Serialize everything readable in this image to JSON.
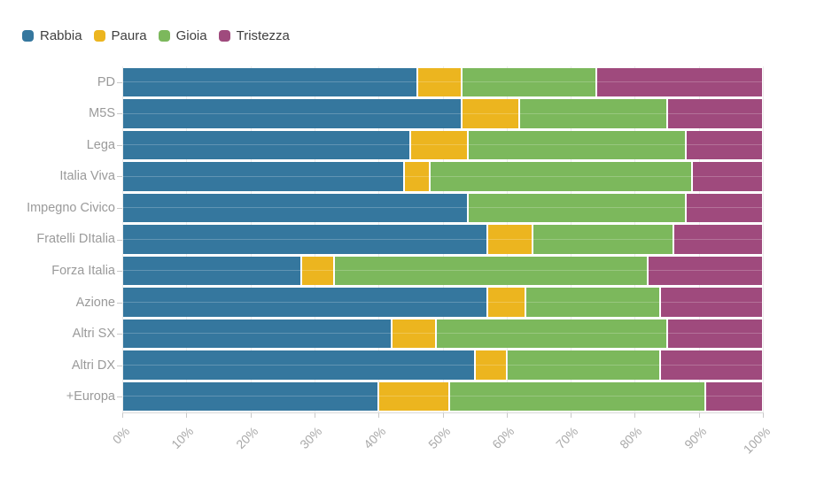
{
  "legend": {
    "items": [
      {
        "id": "rabbia",
        "label": "Rabbia",
        "color": "#35779E"
      },
      {
        "id": "paura",
        "label": "Paura",
        "color": "#ECB51F"
      },
      {
        "id": "gioia",
        "label": "Gioia",
        "color": "#7CB85C"
      },
      {
        "id": "tristezza",
        "label": "Tristezza",
        "color": "#9F4A7D"
      }
    ]
  },
  "chart_data": {
    "type": "bar",
    "orientation": "horizontal",
    "stacked": true,
    "stacked_total": 100,
    "title": "",
    "xlabel": "",
    "ylabel": "",
    "xlim": [
      0,
      100
    ],
    "grid": "vertical-light",
    "legend_position": "top-left",
    "categories": [
      "PD",
      "M5S",
      "Lega",
      "Italia Viva",
      "Impegno Civico",
      "Fratelli DItalia",
      "Forza Italia",
      "Azione",
      "Altri SX",
      "Altri DX",
      "+Europa"
    ],
    "series": [
      {
        "name": "Rabbia",
        "color": "#35779E",
        "values": [
          46,
          53,
          45,
          44,
          54,
          57,
          28,
          57,
          42,
          55,
          40
        ]
      },
      {
        "name": "Paura",
        "color": "#ECB51F",
        "values": [
          7,
          9,
          9,
          4,
          0,
          7,
          5,
          6,
          7,
          5,
          11
        ]
      },
      {
        "name": "Gioia",
        "color": "#7CB85C",
        "values": [
          21,
          23,
          34,
          41,
          34,
          22,
          49,
          21,
          36,
          24,
          40
        ]
      },
      {
        "name": "Tristezza",
        "color": "#9F4A7D",
        "values": [
          26,
          15,
          12,
          11,
          12,
          14,
          18,
          16,
          15,
          16,
          9
        ]
      }
    ],
    "x_tick_labels": [
      "0%",
      "10%",
      "20%",
      "30%",
      "40%",
      "50%",
      "60%",
      "70%",
      "80%",
      "90%",
      "100%"
    ],
    "values_unit": "%"
  }
}
